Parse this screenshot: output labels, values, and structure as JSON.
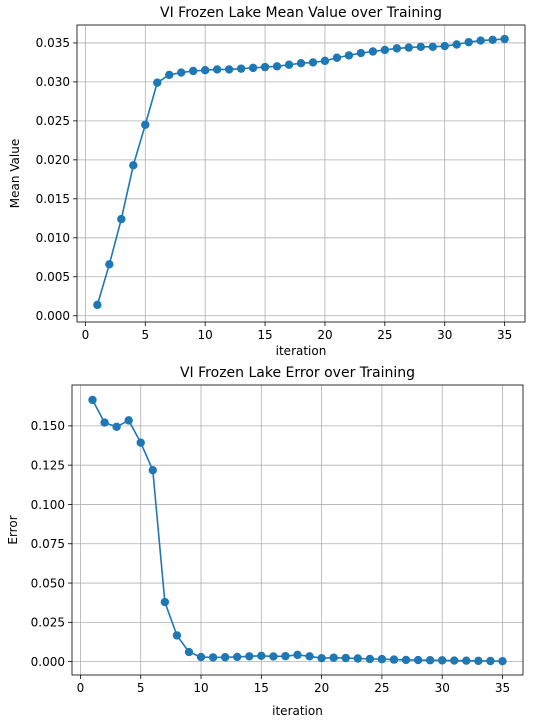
{
  "chart_data": [
    {
      "type": "line",
      "title": "VI Frozen Lake Mean Value over Training",
      "xlabel": "iteration",
      "ylabel": "Mean Value",
      "x": [
        1,
        2,
        3,
        4,
        5,
        6,
        7,
        8,
        9,
        10,
        11,
        12,
        13,
        14,
        15,
        16,
        17,
        18,
        19,
        20,
        21,
        22,
        23,
        24,
        25,
        26,
        27,
        28,
        29,
        30,
        31,
        32,
        33,
        34,
        35
      ],
      "series": [
        {
          "values": [
            0.0014,
            0.0066,
            0.0124,
            0.0193,
            0.0245,
            0.0299,
            0.0309,
            0.0312,
            0.0314,
            0.0315,
            0.0316,
            0.0316,
            0.0317,
            0.0318,
            0.0319,
            0.032,
            0.0322,
            0.0324,
            0.0325,
            0.0327,
            0.0331,
            0.0334,
            0.0337,
            0.0339,
            0.0341,
            0.0343,
            0.0344,
            0.0345,
            0.0345,
            0.0346,
            0.0348,
            0.0351,
            0.0353,
            0.0354,
            0.0355
          ],
          "color": "#1f77b4"
        }
      ],
      "xlim": [
        -0.7,
        36.7
      ],
      "ylim": [
        -0.0008,
        0.0373
      ],
      "xticks": [
        0,
        5,
        10,
        15,
        20,
        25,
        30,
        35
      ],
      "xtick_labels": [
        "0",
        "5",
        "10",
        "15",
        "20",
        "25",
        "30",
        "35"
      ],
      "yticks": [
        0.0,
        0.005,
        0.01,
        0.015,
        0.02,
        0.025,
        0.03,
        0.035
      ],
      "ytick_labels": [
        "0.000",
        "0.005",
        "0.010",
        "0.015",
        "0.020",
        "0.025",
        "0.030",
        "0.035"
      ],
      "grid": true,
      "marker": "circle"
    },
    {
      "type": "line",
      "title": "VI Frozen Lake Error over Training",
      "xlabel": "iteration",
      "ylabel": "Error",
      "x": [
        1,
        2,
        3,
        4,
        5,
        6,
        7,
        8,
        9,
        10,
        11,
        12,
        13,
        14,
        15,
        16,
        17,
        18,
        19,
        20,
        21,
        22,
        23,
        24,
        25,
        26,
        27,
        28,
        29,
        30,
        31,
        32,
        33,
        34,
        35
      ],
      "series": [
        {
          "values": [
            0.1665,
            0.1521,
            0.1494,
            0.1535,
            0.1393,
            0.1218,
            0.0379,
            0.0167,
            0.0061,
            0.0029,
            0.0027,
            0.0028,
            0.003,
            0.0034,
            0.0037,
            0.0033,
            0.0035,
            0.0043,
            0.0034,
            0.0022,
            0.0025,
            0.0023,
            0.002,
            0.0017,
            0.0016,
            0.0013,
            0.0011,
            0.001,
            0.0009,
            0.0008,
            0.0007,
            0.0006,
            0.0005,
            0.0004,
            0.0003
          ],
          "color": "#1f77b4"
        }
      ],
      "xlim": [
        -0.7,
        36.7
      ],
      "ylim": [
        -0.0085,
        0.176
      ],
      "xticks": [
        0,
        5,
        10,
        15,
        20,
        25,
        30,
        35
      ],
      "xtick_labels": [
        "0",
        "5",
        "10",
        "15",
        "20",
        "25",
        "30",
        "35"
      ],
      "yticks": [
        0.0,
        0.025,
        0.05,
        0.075,
        0.1,
        0.125,
        0.15
      ],
      "ytick_labels": [
        "0.000",
        "0.025",
        "0.050",
        "0.075",
        "0.100",
        "0.125",
        "0.150"
      ],
      "grid": true,
      "marker": "circle"
    }
  ]
}
